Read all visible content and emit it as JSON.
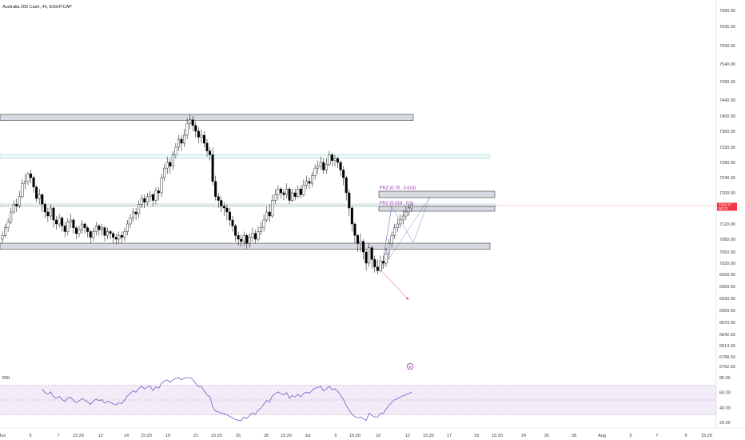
{
  "header": {
    "title": "Australia 200 Cash, 4h, EIGHTCAP"
  },
  "chart_data": {
    "type": "candlestick",
    "price_axis": {
      "tick_labels": [
        "7680.00",
        "7635.00",
        "7590.00",
        "7540.00",
        "7490.00",
        "7440.00",
        "7400.00",
        "7360.00",
        "7320.00",
        "7280.00",
        "7240.00",
        "7200.00",
        "7160.00",
        "7120.00",
        "7080.00",
        "7050.00",
        "7020.00",
        "6990.00",
        "6960.00",
        "6930.00",
        "6900.00",
        "6870.00",
        "6842.50",
        "6814.00",
        "6788.50",
        "6762.50"
      ],
      "last_price": "7166.47",
      "countdown": "00:23",
      "position": "right"
    },
    "time_axis": {
      "tick_labels": [
        "Jun",
        "5",
        "7",
        "15:20",
        "12",
        "14",
        "15:20",
        "19",
        "21",
        "15:20",
        "26",
        "28",
        "15:20",
        "Jul",
        "5",
        "15:20",
        "10",
        "12",
        "15:20",
        "17",
        "19",
        "15:20",
        "24",
        "26",
        "28",
        "Aug",
        "5",
        "7",
        "9",
        "15:20"
      ]
    },
    "zones": [
      {
        "kind": "resistance",
        "color": "#b2b5be"
      },
      {
        "kind": "minor",
        "color": "#80cbc4"
      },
      {
        "kind": "minor",
        "color": "#80cbc4"
      },
      {
        "kind": "support",
        "color": "#b2b5be"
      },
      {
        "kind": "prz",
        "label": "PRZ (0.78 , 0.618)",
        "color": "#b2b5be"
      },
      {
        "kind": "prz",
        "label": "PRZ (0.618 , 0.5)",
        "color": "#b2b5be"
      }
    ],
    "annotations": {
      "event_marker": "E",
      "event_color": "#9c27b0",
      "pattern_color": "#5c6bc0",
      "projection_color": "#f23645"
    },
    "candles": {
      "up_color": "#ffffff",
      "down_color": "#000000",
      "close": [
        7090,
        7110,
        7125,
        7150,
        7170,
        7165,
        7190,
        7225,
        7230,
        7250,
        7240,
        7215,
        7185,
        7195,
        7170,
        7150,
        7140,
        7160,
        7130,
        7120,
        7135,
        7115,
        7100,
        7125,
        7130,
        7110,
        7095,
        7105,
        7120,
        7110,
        7100,
        7085,
        7100,
        7115,
        7105,
        7110,
        7090,
        7100,
        7095,
        7085,
        7080,
        7090,
        7085,
        7100,
        7120,
        7135,
        7150,
        7145,
        7170,
        7185,
        7175,
        7190,
        7195,
        7180,
        7205,
        7200,
        7240,
        7265,
        7280,
        7270,
        7300,
        7320,
        7340,
        7330,
        7350,
        7380,
        7390,
        7375,
        7360,
        7345,
        7350,
        7330,
        7310,
        7300,
        7230,
        7190,
        7180,
        7165,
        7160,
        7150,
        7130,
        7115,
        7090,
        7080,
        7075,
        7090,
        7070,
        7085,
        7095,
        7080,
        7100,
        7110,
        7130,
        7150,
        7140,
        7180,
        7195,
        7210,
        7200,
        7195,
        7210,
        7180,
        7200,
        7190,
        7210,
        7195,
        7220,
        7230,
        7225,
        7245,
        7265,
        7270,
        7280,
        7260,
        7275,
        7300,
        7285,
        7290,
        7280,
        7260,
        7240,
        7200,
        7160,
        7120,
        7090,
        7070,
        7075,
        7050,
        7020,
        7060,
        7030,
        7010,
        7000,
        7025,
        7020,
        7045,
        7070,
        7090,
        7110,
        7120,
        7130,
        7140,
        7150,
        7160,
        7166.47
      ],
      "hl": [
        [
          7070,
          7100
        ],
        [
          7085,
          7120
        ],
        [
          7100,
          7135
        ],
        [
          7120,
          7160
        ],
        [
          7145,
          7180
        ],
        [
          7150,
          7185
        ],
        [
          7160,
          7205
        ],
        [
          7185,
          7235
        ],
        [
          7210,
          7250
        ],
        [
          7220,
          7255
        ],
        [
          7225,
          7260
        ],
        [
          7200,
          7245
        ],
        [
          7175,
          7220
        ],
        [
          7170,
          7210
        ],
        [
          7150,
          7200
        ],
        [
          7135,
          7175
        ],
        [
          7125,
          7160
        ],
        [
          7130,
          7170
        ],
        [
          7110,
          7165
        ],
        [
          7105,
          7140
        ],
        [
          7110,
          7145
        ],
        [
          7100,
          7140
        ],
        [
          7085,
          7125
        ],
        [
          7090,
          7135
        ],
        [
          7110,
          7145
        ],
        [
          7095,
          7135
        ],
        [
          7080,
          7115
        ],
        [
          7085,
          7115
        ],
        [
          7095,
          7130
        ],
        [
          7095,
          7125
        ],
        [
          7085,
          7115
        ],
        [
          7070,
          7105
        ],
        [
          7075,
          7110
        ],
        [
          7090,
          7125
        ],
        [
          7090,
          7120
        ],
        [
          7090,
          7120
        ],
        [
          7075,
          7115
        ],
        [
          7080,
          7110
        ],
        [
          7080,
          7105
        ],
        [
          7070,
          7100
        ],
        [
          7068,
          7095
        ],
        [
          7070,
          7100
        ],
        [
          7070,
          7100
        ],
        [
          7075,
          7110
        ],
        [
          7090,
          7130
        ],
        [
          7110,
          7145
        ],
        [
          7125,
          7160
        ],
        [
          7130,
          7160
        ],
        [
          7135,
          7180
        ],
        [
          7160,
          7195
        ],
        [
          7160,
          7195
        ],
        [
          7165,
          7200
        ],
        [
          7175,
          7205
        ],
        [
          7165,
          7200
        ],
        [
          7170,
          7215
        ],
        [
          7180,
          7215
        ],
        [
          7190,
          7250
        ],
        [
          7230,
          7275
        ],
        [
          7250,
          7295
        ],
        [
          7250,
          7290
        ],
        [
          7260,
          7310
        ],
        [
          7290,
          7330
        ],
        [
          7310,
          7350
        ],
        [
          7310,
          7350
        ],
        [
          7320,
          7365
        ],
        [
          7340,
          7395
        ],
        [
          7365,
          7405
        ],
        [
          7360,
          7400
        ],
        [
          7345,
          7385
        ],
        [
          7330,
          7370
        ],
        [
          7330,
          7365
        ],
        [
          7320,
          7360
        ],
        [
          7295,
          7340
        ],
        [
          7285,
          7320
        ],
        [
          7220,
          7320
        ],
        [
          7180,
          7245
        ],
        [
          7160,
          7200
        ],
        [
          7150,
          7190
        ],
        [
          7140,
          7175
        ],
        [
          7130,
          7170
        ],
        [
          7115,
          7160
        ],
        [
          7100,
          7140
        ],
        [
          7075,
          7120
        ],
        [
          7065,
          7100
        ],
        [
          7062,
          7092
        ],
        [
          7065,
          7100
        ],
        [
          7058,
          7095
        ],
        [
          7060,
          7095
        ],
        [
          7075,
          7110
        ],
        [
          7070,
          7105
        ],
        [
          7075,
          7115
        ],
        [
          7090,
          7125
        ],
        [
          7100,
          7145
        ],
        [
          7125,
          7165
        ],
        [
          7125,
          7170
        ],
        [
          7135,
          7195
        ],
        [
          7170,
          7210
        ],
        [
          7180,
          7220
        ],
        [
          7185,
          7215
        ],
        [
          7180,
          7210
        ],
        [
          7185,
          7225
        ],
        [
          7170,
          7215
        ],
        [
          7175,
          7210
        ],
        [
          7180,
          7210
        ],
        [
          7185,
          7220
        ],
        [
          7185,
          7220
        ],
        [
          7190,
          7235
        ],
        [
          7210,
          7245
        ],
        [
          7210,
          7240
        ],
        [
          7215,
          7255
        ],
        [
          7235,
          7275
        ],
        [
          7250,
          7285
        ],
        [
          7260,
          7295
        ],
        [
          7250,
          7290
        ],
        [
          7250,
          7290
        ],
        [
          7270,
          7310
        ],
        [
          7270,
          7305
        ],
        [
          7270,
          7300
        ],
        [
          7265,
          7295
        ],
        [
          7245,
          7285
        ],
        [
          7220,
          7270
        ],
        [
          7180,
          7245
        ],
        [
          7140,
          7210
        ],
        [
          7100,
          7165
        ],
        [
          7070,
          7125
        ],
        [
          7050,
          7095
        ],
        [
          7050,
          7095
        ],
        [
          7030,
          7080
        ],
        [
          7000,
          7055
        ],
        [
          7010,
          7070
        ],
        [
          7005,
          7065
        ],
        [
          6995,
          7040
        ],
        [
          6990,
          7030
        ],
        [
          6995,
          7040
        ],
        [
          7005,
          7040
        ],
        [
          7010,
          7060
        ],
        [
          7030,
          7080
        ],
        [
          7060,
          7100
        ],
        [
          7080,
          7120
        ],
        [
          7100,
          7135
        ],
        [
          7110,
          7145
        ],
        [
          7120,
          7155
        ],
        [
          7130,
          7165
        ],
        [
          7140,
          7170
        ],
        [
          7150,
          7172
        ]
      ]
    },
    "rsi": {
      "label": "RSI",
      "tick_labels": [
        "80.00",
        "60.00",
        "40.00",
        "20.00"
      ],
      "levels": [
        70,
        50,
        30
      ],
      "ylim": [
        20,
        80
      ],
      "line_color": "#7e57c2",
      "band_color": "#ede7f6"
    }
  }
}
